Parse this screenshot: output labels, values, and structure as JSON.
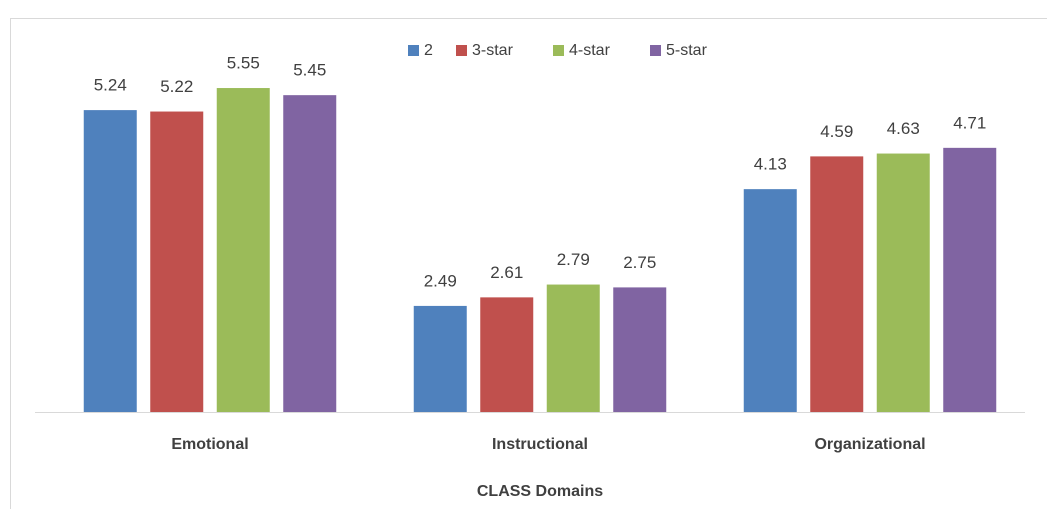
{
  "chart_data": {
    "type": "bar",
    "x_label": "CLASS Domains",
    "categories": [
      "Emotional",
      "Instructional",
      "Organizational"
    ],
    "series": [
      {
        "name": "2",
        "color": "#4f81bd",
        "values": [
          5.24,
          2.49,
          4.13
        ]
      },
      {
        "name": "3-star",
        "color": "#c0504d",
        "values": [
          5.22,
          2.61,
          4.59
        ]
      },
      {
        "name": "4-star",
        "color": "#9bbb59",
        "values": [
          5.55,
          2.79,
          4.63
        ]
      },
      {
        "name": "5-star",
        "color": "#8064a2",
        "values": [
          5.45,
          2.75,
          4.71
        ]
      }
    ],
    "ylim": [
      1,
      6
    ],
    "legend": "top"
  }
}
